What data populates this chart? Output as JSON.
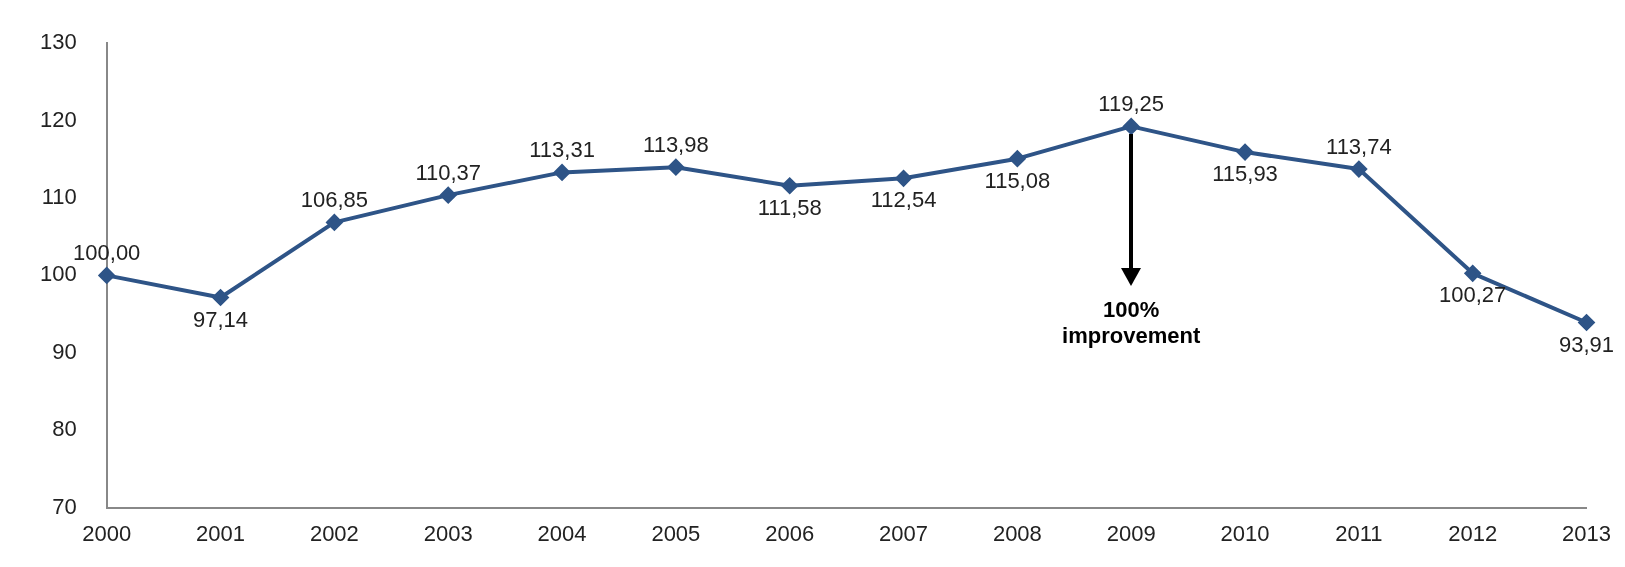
{
  "chart_data": {
    "type": "line",
    "categories": [
      "2000",
      "2001",
      "2002",
      "2003",
      "2004",
      "2005",
      "2006",
      "2007",
      "2008",
      "2009",
      "2010",
      "2011",
      "2012",
      "2013"
    ],
    "values": [
      100.0,
      97.14,
      106.85,
      110.37,
      113.31,
      113.98,
      111.58,
      112.54,
      115.08,
      119.25,
      115.93,
      113.74,
      100.27,
      93.91
    ],
    "value_labels": [
      "100,00",
      "97,14",
      "106,85",
      "110,37",
      "113,31",
      "113,98",
      "111,58",
      "112,54",
      "115,08",
      "119,25",
      "115,93",
      "113,74",
      "100,27",
      "93,91"
    ],
    "color": "#2e5487",
    "marker": "diamond",
    "line_style": "solid",
    "grid": false,
    "legend": false,
    "ylim": [
      70,
      130
    ],
    "yticks": [
      70,
      80,
      90,
      100,
      110,
      120,
      130
    ],
    "annotations": [
      {
        "text": "100% improvement",
        "x": "2009",
        "y": 119.25
      }
    ]
  }
}
